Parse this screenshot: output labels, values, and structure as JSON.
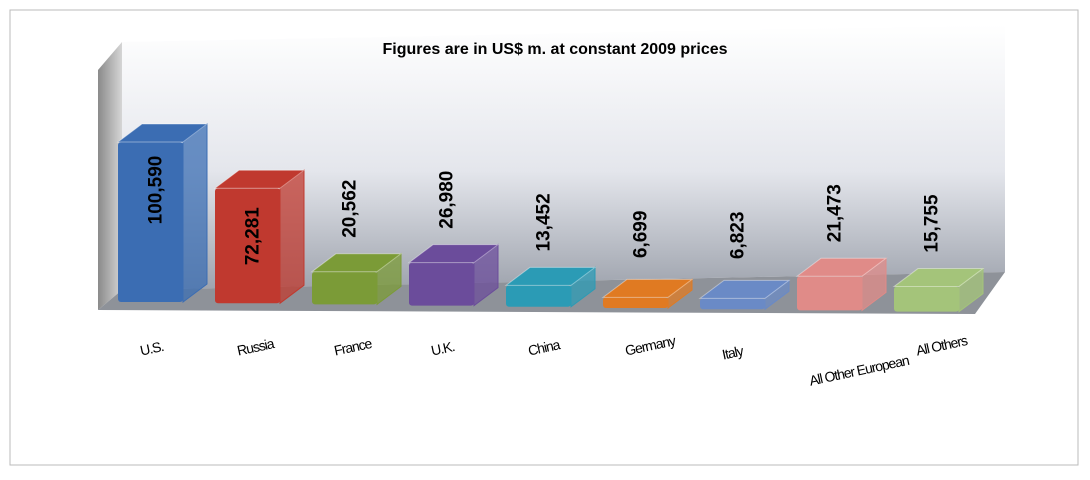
{
  "chart_data": {
    "type": "bar",
    "title": "Figures are in US$ m. at constant 2009 prices",
    "categories": [
      "U.S.",
      "Russia",
      "France",
      "U.K.",
      "China",
      "Germany",
      "Italy",
      "All Other European",
      "All Others"
    ],
    "values": [
      100590,
      72281,
      20562,
      26980,
      13452,
      6699,
      6823,
      21473,
      15755
    ],
    "value_labels": [
      "100,590",
      "72,281",
      "20,562",
      "26,980",
      "13,452",
      "6,699",
      "6,823",
      "21,473",
      "15,755"
    ],
    "colors": [
      "#3b6db3",
      "#c0392f",
      "#7b9b37",
      "#6b4c9b",
      "#2b9bb5",
      "#e07a22",
      "#6a8ac6",
      "#e08b88",
      "#a4c47a"
    ]
  }
}
